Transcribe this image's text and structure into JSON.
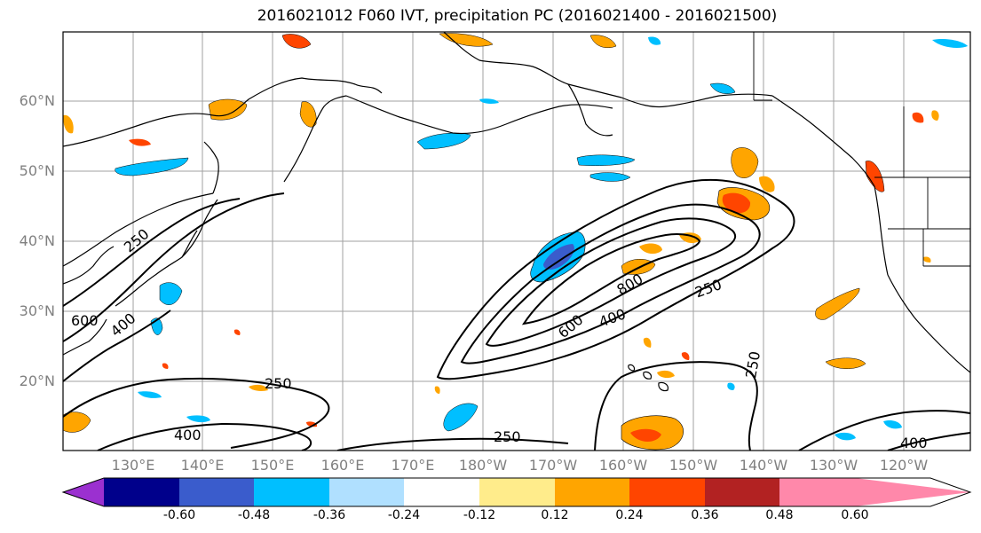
{
  "title": "2016021012 F060 IVT, precipitation PC (2016021400 - 2016021500)",
  "map": {
    "lat_labels": [
      "60°N",
      "50°N",
      "40°N",
      "30°N",
      "20°N"
    ],
    "lon_labels": [
      "130°E",
      "140°E",
      "150°E",
      "160°E",
      "170°E",
      "180°W",
      "170°W",
      "160°W",
      "150°W",
      "140°W",
      "130°W",
      "120°W"
    ],
    "ivt_contour_labels": [
      "250",
      "400",
      "600",
      "800",
      "250",
      "400",
      "600",
      "250",
      "400",
      "250",
      "250",
      "400"
    ],
    "grid": true,
    "colors": {
      "coast": "#000000",
      "grid": "#a0a0a0",
      "contour": "#000000"
    }
  },
  "colorbar": {
    "tick_labels": [
      "-0.60",
      "-0.48",
      "-0.36",
      "-0.24",
      "-0.12",
      "0.12",
      "0.24",
      "0.36",
      "0.48",
      "0.60"
    ],
    "colors": [
      "#9b30d0",
      "#00008b",
      "#3a5ccc",
      "#00bfff",
      "#b0e0ff",
      "#ffffff",
      "#ffec8b",
      "#ffa500",
      "#ff4500",
      "#b22222",
      "#ff88aa"
    ]
  }
}
